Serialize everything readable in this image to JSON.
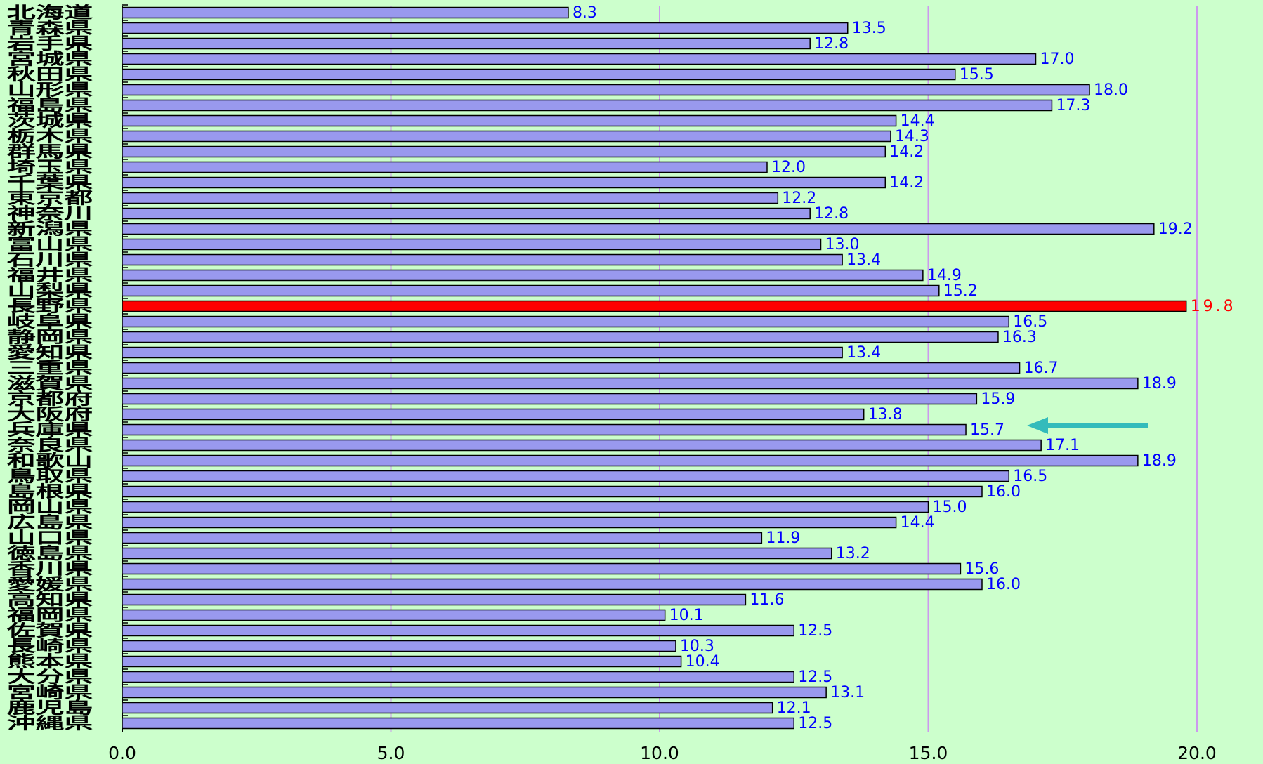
{
  "chart_data": {
    "type": "bar",
    "orientation": "horizontal",
    "categories": [
      "北海道",
      "青森県",
      "岩手県",
      "宮城県",
      "秋田県",
      "山形県",
      "福島県",
      "茨城県",
      "栃木県",
      "群馬県",
      "埼玉県",
      "千葉県",
      "東京都",
      "神奈川",
      "新潟県",
      "富山県",
      "石川県",
      "福井県",
      "山梨県",
      "長野県",
      "岐阜県",
      "静岡県",
      "愛知県",
      "三重県",
      "滋賀県",
      "京都府",
      "大阪府",
      "兵庫県",
      "奈良県",
      "和歌山",
      "鳥取県",
      "島根県",
      "岡山県",
      "広島県",
      "山口県",
      "徳島県",
      "香川県",
      "愛媛県",
      "高知県",
      "福岡県",
      "佐賀県",
      "長崎県",
      "熊本県",
      "大分県",
      "宮崎県",
      "鹿児島",
      "沖縄県"
    ],
    "values": [
      8.3,
      13.5,
      12.8,
      17.0,
      15.5,
      18.0,
      17.3,
      14.4,
      14.3,
      14.2,
      12.0,
      14.2,
      12.2,
      12.8,
      19.2,
      13.0,
      13.4,
      14.9,
      15.2,
      19.8,
      16.5,
      16.3,
      13.4,
      16.7,
      18.9,
      15.9,
      13.8,
      15.7,
      17.1,
      18.9,
      16.5,
      16.0,
      15.0,
      14.4,
      11.9,
      13.2,
      15.6,
      16.0,
      11.6,
      10.1,
      12.5,
      10.3,
      10.4,
      12.5,
      13.1,
      12.1,
      12.5
    ],
    "value_labels": [
      "8.3",
      "13.5",
      "12.8",
      "17.0",
      "15.5",
      "18.0",
      "17.3",
      "14.4",
      "14.3",
      "14.2",
      "12.0",
      "14.2",
      "12.2",
      "12.8",
      "19.2",
      "13.0",
      "13.4",
      "14.9",
      "15.2",
      "19.8",
      "16.5",
      "16.3",
      "13.4",
      "16.7",
      "18.9",
      "15.9",
      "13.8",
      "15.7",
      "17.1",
      "18.9",
      "16.5",
      "16.0",
      "15.0",
      "14.4",
      "11.9",
      "13.2",
      "15.6",
      "16.0",
      "11.6",
      "10.1",
      "12.5",
      "10.3",
      "10.4",
      "12.5",
      "13.1",
      "12.1",
      "12.5"
    ],
    "colors": [
      "#9999ee",
      "#9999ee",
      "#9999ee",
      "#9999ee",
      "#9999ee",
      "#9999ee",
      "#9999ee",
      "#9999ee",
      "#9999ee",
      "#9999ee",
      "#9999ee",
      "#9999ee",
      "#9999ee",
      "#9999ee",
      "#9999ee",
      "#9999ee",
      "#9999ee",
      "#9999ee",
      "#9999ee",
      "#ff0000",
      "#9999ee",
      "#9999ee",
      "#9999ee",
      "#9999ee",
      "#9999ee",
      "#9999ee",
      "#9999ee",
      "#9999ee",
      "#9999ee",
      "#9999ee",
      "#9999ee",
      "#9999ee",
      "#9999ee",
      "#9999ee",
      "#9999ee",
      "#9999ee",
      "#9999ee",
      "#9999ee",
      "#9999ee",
      "#9999ee",
      "#9999ee",
      "#9999ee",
      "#9999ee",
      "#9999ee",
      "#9999ee",
      "#9999ee",
      "#9999ee"
    ],
    "label_colors": [
      "#0000ff",
      "#0000ff",
      "#0000ff",
      "#0000ff",
      "#0000ff",
      "#0000ff",
      "#0000ff",
      "#0000ff",
      "#0000ff",
      "#0000ff",
      "#0000ff",
      "#0000ff",
      "#0000ff",
      "#0000ff",
      "#0000ff",
      "#0000ff",
      "#0000ff",
      "#0000ff",
      "#0000ff",
      "#ff0000",
      "#0000ff",
      "#0000ff",
      "#0000ff",
      "#0000ff",
      "#0000ff",
      "#0000ff",
      "#0000ff",
      "#0000ff",
      "#0000ff",
      "#0000ff",
      "#0000ff",
      "#0000ff",
      "#0000ff",
      "#0000ff",
      "#0000ff",
      "#0000ff",
      "#0000ff",
      "#0000ff",
      "#0000ff",
      "#0000ff",
      "#0000ff",
      "#0000ff",
      "#0000ff",
      "#0000ff",
      "#0000ff",
      "#0000ff",
      "#0000ff"
    ],
    "xlim": [
      0,
      20
    ],
    "xticks": [
      {
        "value": 0,
        "label": "0.0"
      },
      {
        "value": 5,
        "label": "5.0"
      },
      {
        "value": 10,
        "label": "10.0"
      },
      {
        "value": 15,
        "label": "15.0"
      },
      {
        "value": 20,
        "label": "20.0"
      }
    ],
    "grid": true,
    "grid_color": "#cc99ee"
  }
}
